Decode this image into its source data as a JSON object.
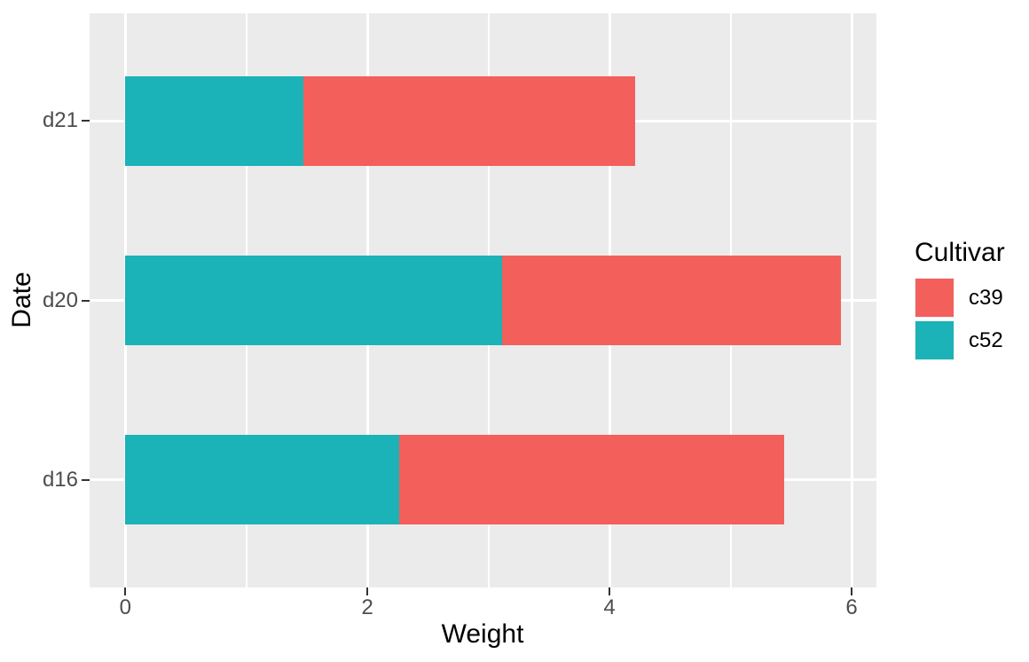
{
  "chart_data": {
    "type": "bar",
    "orientation": "horizontal",
    "stacked": true,
    "xlabel": "Weight",
    "ylabel": "Date",
    "xlim": [
      0,
      6.2
    ],
    "xticks": [
      0,
      2,
      4,
      6
    ],
    "xtick_labels": [
      "0",
      "2",
      "4",
      "6"
    ],
    "x_minor_ticks": [
      1,
      3,
      5
    ],
    "grid": true,
    "categories_top_to_bottom": [
      "d21",
      "d20",
      "d16"
    ],
    "series": [
      {
        "name": "c52",
        "color": "#1BB2B8",
        "values": [
          1.47,
          3.11,
          2.26
        ]
      },
      {
        "name": "c39",
        "color": "#F35F5B",
        "values": [
          2.74,
          2.8,
          3.18
        ]
      }
    ],
    "totals": [
      4.21,
      5.91,
      5.44
    ],
    "legend": {
      "title": "Cultivar",
      "position": "right",
      "entries": [
        {
          "label": "c39",
          "color": "#F35F5B"
        },
        {
          "label": "c52",
          "color": "#1BB2B8"
        }
      ]
    },
    "colors": {
      "panel_background": "#EBEBEB",
      "gridline": "#FFFFFF",
      "tick_mark": "#333333",
      "tick_label": "#4D4D4D",
      "axis_title": "#000000"
    }
  }
}
